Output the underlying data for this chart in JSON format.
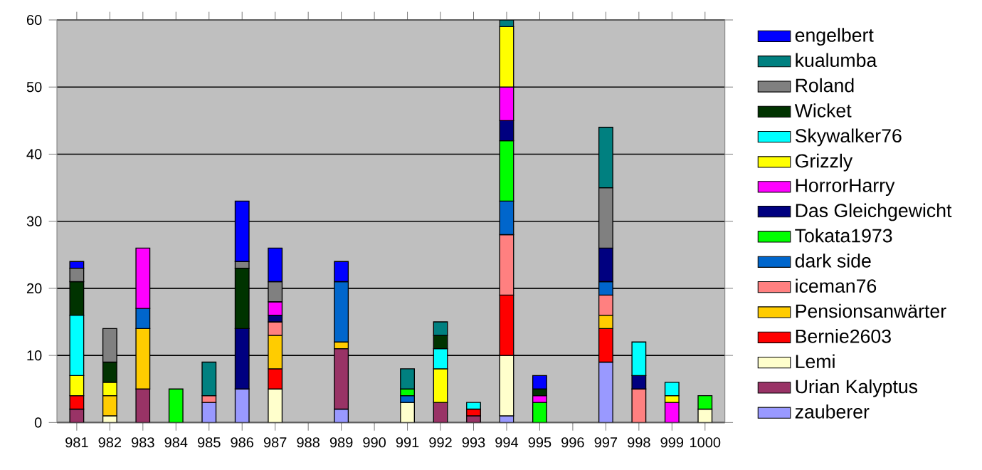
{
  "chart_data": {
    "type": "bar",
    "stacked": true,
    "grid": "y",
    "legend": "right",
    "categories": [
      "981",
      "982",
      "983",
      "984",
      "985",
      "986",
      "987",
      "988",
      "989",
      "990",
      "991",
      "992",
      "993",
      "994",
      "995",
      "996",
      "997",
      "998",
      "999",
      "1000"
    ],
    "ylim": [
      0,
      60
    ],
    "yticks": [
      0,
      10,
      20,
      30,
      40,
      50,
      60
    ],
    "series": [
      {
        "name": "zauberer",
        "color": "#9999ff",
        "values": [
          null,
          null,
          null,
          null,
          3,
          5,
          null,
          null,
          2,
          null,
          null,
          null,
          null,
          1,
          null,
          null,
          9,
          null,
          null,
          null
        ]
      },
      {
        "name": "Urian Kalyptus",
        "color": "#993366",
        "values": [
          2,
          null,
          5,
          null,
          null,
          null,
          null,
          null,
          9,
          null,
          null,
          3,
          1,
          null,
          null,
          null,
          null,
          null,
          null,
          null
        ]
      },
      {
        "name": "Lemi",
        "color": "#ffffcc",
        "values": [
          null,
          1,
          null,
          null,
          null,
          null,
          5,
          null,
          null,
          null,
          3,
          null,
          null,
          9,
          null,
          null,
          null,
          null,
          null,
          2
        ]
      },
      {
        "name": "Bernie2603",
        "color": "#ff0000",
        "values": [
          2,
          null,
          null,
          null,
          null,
          null,
          3,
          null,
          null,
          null,
          null,
          null,
          1,
          9,
          null,
          null,
          5,
          null,
          null,
          null
        ]
      },
      {
        "name": "Pensionsanwärter",
        "color": "#ffcc00",
        "values": [
          null,
          3,
          9,
          null,
          null,
          null,
          5,
          null,
          1,
          null,
          null,
          null,
          null,
          null,
          null,
          null,
          2,
          null,
          null,
          null
        ]
      },
      {
        "name": "iceman76",
        "color": "#ff8080",
        "values": [
          null,
          null,
          null,
          null,
          1,
          null,
          2,
          null,
          null,
          null,
          null,
          null,
          null,
          9,
          null,
          null,
          3,
          5,
          null,
          null
        ]
      },
      {
        "name": "dark side",
        "color": "#0066cc",
        "values": [
          null,
          null,
          3,
          null,
          null,
          null,
          null,
          null,
          9,
          null,
          1,
          null,
          null,
          5,
          null,
          null,
          2,
          null,
          null,
          null
        ]
      },
      {
        "name": "Tokata1973",
        "color": "#00ff00",
        "values": [
          null,
          null,
          null,
          5,
          null,
          null,
          null,
          null,
          null,
          null,
          1,
          null,
          null,
          9,
          3,
          null,
          null,
          null,
          null,
          2
        ]
      },
      {
        "name": "Das Gleichgewicht",
        "color": "#000080",
        "values": [
          null,
          null,
          null,
          null,
          null,
          9,
          1,
          null,
          null,
          null,
          null,
          null,
          null,
          3,
          null,
          null,
          5,
          2,
          null,
          null
        ]
      },
      {
        "name": "HorrorHarry",
        "color": "#ff00ff",
        "values": [
          null,
          null,
          9,
          null,
          null,
          null,
          2,
          null,
          null,
          null,
          null,
          null,
          null,
          5,
          1,
          null,
          null,
          null,
          3,
          null
        ]
      },
      {
        "name": "Grizzly",
        "color": "#ffff00",
        "values": [
          3,
          2,
          null,
          null,
          null,
          null,
          null,
          null,
          null,
          null,
          null,
          5,
          null,
          9,
          null,
          null,
          null,
          null,
          1,
          null
        ]
      },
      {
        "name": "Skywalker76",
        "color": "#00ffff",
        "values": [
          9,
          null,
          null,
          null,
          null,
          null,
          null,
          null,
          null,
          null,
          null,
          3,
          1,
          null,
          null,
          null,
          null,
          5,
          2,
          null
        ]
      },
      {
        "name": "Wicket",
        "color": "#003300",
        "values": [
          5,
          3,
          null,
          null,
          null,
          9,
          null,
          null,
          null,
          null,
          null,
          2,
          null,
          null,
          1,
          null,
          null,
          null,
          null,
          null
        ]
      },
      {
        "name": "Roland",
        "color": "#808080",
        "values": [
          2,
          5,
          null,
          null,
          null,
          1,
          3,
          null,
          null,
          null,
          null,
          null,
          null,
          null,
          null,
          null,
          9,
          null,
          null,
          null
        ]
      },
      {
        "name": "kualumba",
        "color": "#008080",
        "values": [
          null,
          null,
          null,
          null,
          5,
          null,
          null,
          null,
          null,
          null,
          3,
          2,
          null,
          1,
          null,
          null,
          9,
          null,
          null,
          null
        ]
      },
      {
        "name": "engelbert",
        "color": "#0000ff",
        "values": [
          1,
          null,
          null,
          null,
          null,
          9,
          5,
          null,
          3,
          null,
          null,
          null,
          null,
          null,
          2,
          null,
          null,
          null,
          null,
          null
        ]
      }
    ]
  }
}
